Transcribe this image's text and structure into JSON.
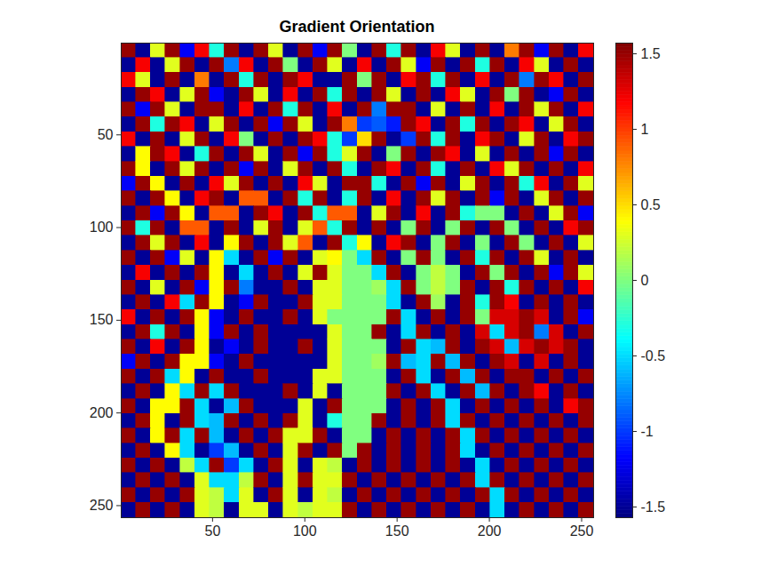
{
  "chart_data": {
    "type": "heatmap",
    "title": "Gradient Orientation",
    "xlim": [
      0.5,
      256.5
    ],
    "ylim": [
      256.5,
      0.5
    ],
    "xticks": [
      50,
      100,
      150,
      200,
      250
    ],
    "yticks": [
      50,
      100,
      150,
      200,
      250
    ],
    "colorbar": {
      "range": [
        -1.5708,
        1.5708
      ],
      "ticks": [
        -1.5,
        -1,
        -0.5,
        0,
        0.5,
        1,
        1.5
      ]
    },
    "cells": [
      [
        1.5,
        -1.5,
        0.3,
        1.5,
        -1.2,
        1.2,
        -0.3,
        1.5,
        -1.5,
        1.5,
        0.3,
        -1.5,
        1.5,
        -1.2,
        1.5,
        0.0,
        -1.5,
        1.5,
        -0.3,
        1.5,
        -1.5,
        1.2,
        0.3,
        -1.5,
        1.5,
        -1.5,
        0.8,
        1.5,
        -1.2,
        1.5,
        -1.5,
        1.2
      ],
      [
        -1.5,
        1.2,
        -1.5,
        0.3,
        1.5,
        -1.5,
        1.5,
        -0.8,
        1.2,
        -1.5,
        1.5,
        0.0,
        -1.5,
        1.5,
        0.3,
        -1.5,
        1.2,
        -1.5,
        1.5,
        0.3,
        -1.2,
        1.5,
        -1.5,
        1.5,
        -0.3,
        1.5,
        -1.5,
        1.2,
        0.3,
        -1.5,
        1.5,
        -1.5
      ],
      [
        1.2,
        0.3,
        -1.5,
        1.5,
        -1.5,
        0.8,
        -1.5,
        1.5,
        -0.3,
        1.5,
        -1.5,
        1.5,
        1.2,
        -1.5,
        -1.5,
        1.5,
        0.0,
        1.5,
        -1.5,
        1.2,
        1.5,
        -0.3,
        1.5,
        -1.5,
        1.2,
        -1.5,
        1.5,
        -0.8,
        1.5,
        1.2,
        -1.5,
        1.5
      ],
      [
        -1.5,
        1.5,
        1.2,
        -1.5,
        0.3,
        1.5,
        -1.2,
        -1.5,
        1.5,
        0.3,
        -1.5,
        1.2,
        -1.5,
        1.5,
        -0.3,
        1.5,
        -1.5,
        1.5,
        0.3,
        -1.5,
        1.5,
        -1.5,
        1.2,
        0.3,
        -1.5,
        1.5,
        0.0,
        1.5,
        -1.5,
        -1.2,
        1.5,
        -1.5
      ],
      [
        1.5,
        -1.2,
        1.5,
        0.3,
        -1.5,
        1.5,
        1.5,
        -1.5,
        1.2,
        -1.5,
        1.5,
        -0.3,
        1.5,
        -1.5,
        1.2,
        -1.5,
        1.5,
        -0.8,
        1.5,
        1.5,
        -1.5,
        0.3,
        -1.5,
        1.5,
        -1.5,
        1.2,
        -1.5,
        1.5,
        0.3,
        1.5,
        -1.5,
        1.2
      ],
      [
        -1.5,
        1.5,
        -0.3,
        1.5,
        1.2,
        -1.5,
        0.3,
        1.5,
        -1.5,
        1.5,
        -1.2,
        1.5,
        0.3,
        -1.5,
        1.5,
        0.8,
        -1.0,
        -0.9,
        -1.1,
        1.5,
        1.2,
        -1.5,
        1.5,
        -0.3,
        1.5,
        -1.5,
        1.5,
        1.2,
        -1.5,
        0.3,
        1.5,
        -1.5
      ],
      [
        1.2,
        -1.5,
        1.5,
        -1.5,
        0.3,
        1.5,
        -1.5,
        1.2,
        0.0,
        -1.5,
        1.5,
        -1.5,
        1.5,
        1.2,
        -0.3,
        -1.0,
        0.5,
        1.5,
        -1.5,
        -1.0,
        1.5,
        -0.3,
        1.5,
        -1.5,
        1.2,
        1.5,
        -1.5,
        0.3,
        1.5,
        -1.5,
        1.2,
        1.5
      ],
      [
        -1.5,
        0.4,
        1.5,
        1.2,
        -1.5,
        -0.3,
        1.5,
        -1.5,
        1.5,
        0.3,
        -1.5,
        1.5,
        -1.2,
        1.5,
        -0.3,
        0.3,
        1.5,
        -1.5,
        0.0,
        1.5,
        -1.5,
        1.5,
        1.2,
        -1.5,
        0.3,
        -1.5,
        1.5,
        -1.5,
        1.5,
        -1.2,
        1.5,
        -1.5
      ],
      [
        1.5,
        0.4,
        -1.5,
        1.5,
        0.3,
        1.5,
        -1.5,
        1.5,
        -1.2,
        1.5,
        -1.5,
        0.3,
        1.5,
        -1.5,
        1.5,
        -0.3,
        -1.5,
        1.5,
        1.2,
        -1.5,
        1.5,
        -0.3,
        -1.5,
        1.5,
        -1.5,
        1.2,
        0.3,
        1.5,
        -1.5,
        1.5,
        -1.5,
        1.2
      ],
      [
        -1.2,
        1.5,
        0.4,
        -1.5,
        1.5,
        -1.5,
        1.2,
        0.3,
        1.5,
        -1.5,
        1.5,
        -1.5,
        1.2,
        0.3,
        -1.5,
        1.5,
        1.5,
        -0.3,
        -1.5,
        1.5,
        -1.2,
        1.5,
        -1.5,
        0.3,
        1.5,
        -1.5,
        1.5,
        -0.3,
        1.2,
        -1.5,
        1.5,
        0.3
      ],
      [
        1.5,
        -1.5,
        1.5,
        0.4,
        -1.5,
        1.2,
        1.5,
        -1.5,
        0.9,
        0.9,
        -1.5,
        1.5,
        -0.3,
        1.5,
        -1.5,
        -0.3,
        1.5,
        -1.5,
        1.2,
        -1.5,
        1.5,
        0.3,
        1.5,
        -1.5,
        1.5,
        -1.2,
        1.5,
        -1.5,
        0.3,
        1.5,
        -1.5,
        1.5
      ],
      [
        -1.5,
        1.5,
        -1.2,
        1.5,
        0.4,
        -1.5,
        0.9,
        0.9,
        -1.5,
        1.5,
        1.2,
        -1.5,
        1.5,
        -0.3,
        0.9,
        0.9,
        -1.5,
        0.3,
        1.5,
        -1.5,
        1.2,
        -1.5,
        1.5,
        -0.3,
        0.0,
        0.0,
        -1.5,
        1.5,
        -1.5,
        0.3,
        1.5,
        -1.2
      ],
      [
        1.5,
        -0.3,
        1.5,
        -1.5,
        0.9,
        0.9,
        -1.5,
        1.5,
        -1.5,
        0.3,
        1.5,
        -1.5,
        0.3,
        0.9,
        -0.3,
        1.5,
        -1.5,
        1.5,
        -1.5,
        0.0,
        1.5,
        -1.5,
        0.0,
        1.5,
        -1.5,
        1.5,
        0.0,
        -1.5,
        1.5,
        -1.5,
        1.2,
        1.5
      ],
      [
        -1.5,
        1.5,
        0.3,
        1.5,
        -1.5,
        1.2,
        -1.5,
        0.4,
        1.5,
        -1.5,
        1.5,
        0.3,
        0.9,
        -1.5,
        1.5,
        -0.3,
        0.4,
        -1.5,
        1.2,
        1.5,
        -1.5,
        0.0,
        1.5,
        -1.5,
        0.0,
        -1.5,
        1.5,
        0.0,
        -1.5,
        1.5,
        -1.5,
        0.3
      ],
      [
        1.5,
        -1.5,
        1.5,
        -1.2,
        0.3,
        -1.5,
        0.4,
        -0.5,
        -1.5,
        1.5,
        -1.2,
        1.5,
        -1.5,
        0.3,
        0.4,
        0.0,
        -0.5,
        1.5,
        -1.5,
        0.0,
        1.5,
        0.0,
        -1.5,
        1.5,
        -0.3,
        1.5,
        -1.5,
        1.5,
        0.3,
        -1.5,
        1.5,
        -1.5
      ],
      [
        -1.5,
        1.2,
        -1.5,
        1.5,
        -1.5,
        1.5,
        0.4,
        -1.5,
        -0.5,
        -1.5,
        1.5,
        -1.5,
        0.3,
        1.5,
        0.3,
        0.0,
        0.0,
        -0.5,
        1.5,
        -1.5,
        0.0,
        0.2,
        0.0,
        -1.5,
        1.5,
        0.0,
        1.5,
        -1.5,
        1.5,
        -1.2,
        1.5,
        0.3
      ],
      [
        1.5,
        -1.5,
        0.3,
        -1.5,
        1.5,
        -1.2,
        0.4,
        1.5,
        -0.8,
        -1.5,
        -1.5,
        1.5,
        -1.5,
        0.3,
        0.3,
        0.0,
        0.0,
        0.1,
        -0.5,
        1.5,
        0.0,
        0.2,
        0.0,
        1.5,
        -1.5,
        1.5,
        -0.3,
        1.5,
        -1.5,
        1.5,
        -1.5,
        1.2
      ],
      [
        -1.5,
        1.5,
        -1.5,
        1.2,
        -0.5,
        1.5,
        0.4,
        -1.5,
        -1.2,
        1.5,
        -1.5,
        -1.5,
        1.5,
        0.3,
        0.3,
        0.0,
        0.0,
        0.0,
        -0.5,
        -1.5,
        1.5,
        0.1,
        -1.5,
        1.5,
        -0.3,
        1.5,
        1.2,
        -1.5,
        1.5,
        -1.5,
        1.5,
        -1.5
      ],
      [
        1.2,
        -1.5,
        1.5,
        -1.5,
        1.5,
        0.4,
        -1.2,
        -1.5,
        1.5,
        -1.5,
        -1.5,
        1.5,
        -1.5,
        0.3,
        0.0,
        0.0,
        0.0,
        0.0,
        1.5,
        -0.5,
        -1.5,
        1.5,
        -1.5,
        1.5,
        0.0,
        1.3,
        1.3,
        1.5,
        1.3,
        -1.5,
        1.5,
        -1.2
      ],
      [
        -1.5,
        1.5,
        -0.3,
        1.5,
        -1.5,
        0.4,
        -1.2,
        1.5,
        -1.5,
        1.5,
        -1.5,
        -1.5,
        -1.5,
        -1.5,
        0.3,
        0.0,
        0.0,
        1.5,
        -1.5,
        -0.5,
        1.5,
        -1.5,
        1.5,
        -1.5,
        1.3,
        -0.5,
        1.3,
        1.5,
        -0.8,
        1.3,
        -1.5,
        1.5
      ],
      [
        1.5,
        -1.5,
        1.2,
        -1.5,
        1.5,
        0.4,
        -1.5,
        -1.2,
        -1.5,
        1.5,
        -1.5,
        -1.5,
        1.5,
        -1.5,
        0.3,
        0.0,
        0.0,
        0.0,
        -1.5,
        1.5,
        -0.5,
        -0.6,
        1.5,
        -1.5,
        1.5,
        1.3,
        -0.6,
        1.3,
        1.5,
        1.3,
        1.5,
        -1.5
      ],
      [
        -1.2,
        1.5,
        -1.5,
        1.5,
        0.4,
        0.4,
        -1.2,
        -1.5,
        1.5,
        -1.5,
        -1.5,
        -1.5,
        -1.5,
        -1.5,
        0.3,
        0.0,
        0.0,
        0.1,
        1.5,
        -0.6,
        -0.5,
        1.5,
        -0.6,
        1.5,
        -1.5,
        1.5,
        1.3,
        -1.5,
        1.3,
        -1.5,
        1.5,
        -1.5
      ],
      [
        1.5,
        -1.5,
        1.5,
        -0.5,
        0.4,
        -1.5,
        1.5,
        -1.5,
        -1.5,
        1.5,
        -1.5,
        -1.5,
        -1.5,
        0.3,
        0.3,
        0.0,
        0.0,
        0.0,
        -1.5,
        1.5,
        -0.5,
        -1.5,
        1.5,
        -0.6,
        1.5,
        -1.5,
        1.5,
        1.5,
        -1.5,
        1.5,
        -1.5,
        1.5
      ],
      [
        -1.5,
        1.5,
        -1.5,
        0.4,
        -0.5,
        1.5,
        -0.5,
        1.5,
        -1.5,
        -1.5,
        -1.5,
        1.5,
        -1.5,
        0.3,
        -1.5,
        0.0,
        0.0,
        0.0,
        1.5,
        -1.5,
        1.5,
        -0.5,
        -1.5,
        1.5,
        -0.6,
        1.5,
        -1.5,
        1.5,
        1.2,
        -1.5,
        1.5,
        -1.5
      ],
      [
        1.5,
        -1.5,
        0.4,
        0.4,
        1.5,
        -0.5,
        -1.5,
        -0.6,
        1.5,
        -1.5,
        -1.5,
        -1.5,
        0.3,
        -1.5,
        1.5,
        0.0,
        0.0,
        0.0,
        -1.5,
        1.5,
        -1.5,
        1.5,
        -0.5,
        -1.5,
        1.5,
        -1.5,
        1.5,
        -1.5,
        1.5,
        -1.5,
        1.2,
        1.5
      ],
      [
        -1.5,
        1.5,
        0.4,
        -1.5,
        1.5,
        -0.5,
        -0.6,
        1.5,
        -1.5,
        1.5,
        -1.5,
        1.5,
        0.3,
        -1.5,
        -0.3,
        0.0,
        0.0,
        1.5,
        -1.5,
        1.5,
        -1.5,
        1.5,
        -0.5,
        1.5,
        -1.5,
        1.5,
        -1.5,
        1.5,
        -1.5,
        1.5,
        -1.5,
        1.5
      ],
      [
        1.5,
        -1.5,
        0.4,
        1.5,
        -0.5,
        1.5,
        -0.6,
        -1.5,
        1.5,
        -1.5,
        1.5,
        0.3,
        0.3,
        1.5,
        -1.5,
        0.0,
        0.0,
        -1.5,
        1.5,
        -1.5,
        1.5,
        -1.5,
        1.5,
        -0.5,
        1.5,
        -1.5,
        1.5,
        -1.5,
        1.5,
        -1.5,
        1.5,
        -1.5
      ],
      [
        -1.5,
        1.5,
        -1.5,
        0.4,
        -0.5,
        -1.5,
        -1.0,
        -0.6,
        -1.5,
        1.5,
        -1.5,
        0.3,
        1.5,
        -1.5,
        1.5,
        0.0,
        1.5,
        -1.5,
        1.5,
        -1.5,
        1.5,
        -1.5,
        1.5,
        -0.5,
        -1.5,
        1.5,
        -1.5,
        1.5,
        -1.5,
        1.5,
        -1.5,
        1.5
      ],
      [
        1.5,
        -1.5,
        1.5,
        -1.5,
        0.2,
        -0.5,
        1.5,
        -1.0,
        -0.5,
        -1.5,
        1.5,
        0.3,
        -1.5,
        0.3,
        0.2,
        -1.5,
        1.5,
        -1.5,
        1.5,
        -1.5,
        1.5,
        -1.5,
        1.5,
        -1.5,
        -0.5,
        -1.5,
        1.5,
        -1.5,
        1.5,
        -1.5,
        1.5,
        -1.5
      ],
      [
        -1.5,
        1.5,
        -1.5,
        1.5,
        -1.5,
        0.3,
        -0.5,
        -0.5,
        0.2,
        1.5,
        -1.5,
        0.3,
        1.5,
        0.3,
        0.3,
        1.5,
        -1.5,
        1.5,
        -1.5,
        1.5,
        -1.5,
        1.5,
        -1.5,
        1.5,
        -0.5,
        1.5,
        -1.5,
        1.5,
        -1.5,
        1.5,
        -1.5,
        1.5
      ],
      [
        1.5,
        -1.5,
        1.5,
        -1.5,
        1.5,
        0.3,
        0.2,
        -0.5,
        0.3,
        -1.5,
        1.5,
        0.3,
        -1.5,
        0.3,
        0.2,
        -1.5,
        1.5,
        -1.5,
        1.5,
        -1.5,
        1.5,
        -1.5,
        1.5,
        -1.5,
        1.5,
        -0.5,
        1.5,
        -1.5,
        1.5,
        -1.5,
        1.5,
        -1.5
      ],
      [
        -1.5,
        1.5,
        -1.5,
        1.5,
        -1.5,
        0.3,
        0.2,
        -1.5,
        0.3,
        0.3,
        -1.5,
        0.3,
        0.2,
        0.3,
        0.3,
        1.5,
        -1.5,
        1.5,
        -1.5,
        1.5,
        -1.5,
        1.5,
        -1.5,
        1.5,
        -1.5,
        -0.5,
        -1.5,
        1.5,
        -1.5,
        1.5,
        -1.5,
        1.5
      ]
    ]
  }
}
